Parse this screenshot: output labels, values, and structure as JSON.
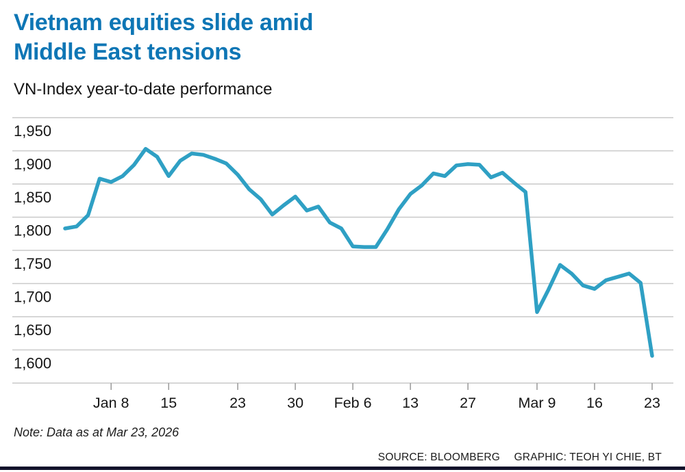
{
  "header": {
    "title_line1": "Vietnam equities slide amid",
    "title_line2": "Middle East tensions",
    "subtitle": "VN-Index year-to-date performance"
  },
  "chart_data": {
    "type": "line",
    "series_name": "VN-Index",
    "x_dates": [
      "Jan 2",
      "Jan 5",
      "Jan 6",
      "Jan 7",
      "Jan 8",
      "Jan 9",
      "Jan 12",
      "Jan 13",
      "Jan 14",
      "Jan 15",
      "Jan 16",
      "Jan 19",
      "Jan 20",
      "Jan 21",
      "Jan 22",
      "Jan 23",
      "Jan 26",
      "Jan 27",
      "Jan 28",
      "Jan 29",
      "Jan 30",
      "Feb 2",
      "Feb 3",
      "Feb 4",
      "Feb 5",
      "Feb 6",
      "Feb 9",
      "Feb 10",
      "Feb 11",
      "Feb 12",
      "Feb 13",
      "Feb 23",
      "Feb 24",
      "Feb 25",
      "Feb 26",
      "Feb 27",
      "Mar 2",
      "Mar 3",
      "Mar 4",
      "Mar 5",
      "Mar 6",
      "Mar 9",
      "Mar 10",
      "Mar 11",
      "Mar 12",
      "Mar 13",
      "Mar 16",
      "Mar 17",
      "Mar 18",
      "Mar 19",
      "Mar 20",
      "Mar 23"
    ],
    "values": [
      1783,
      1786,
      1803,
      1858,
      1853,
      1862,
      1879,
      1903,
      1891,
      1862,
      1885,
      1896,
      1894,
      1888,
      1881,
      1864,
      1842,
      1827,
      1804,
      1818,
      1831,
      1810,
      1816,
      1792,
      1783,
      1756,
      1755,
      1755,
      1782,
      1812,
      1835,
      1848,
      1866,
      1862,
      1878,
      1880,
      1879,
      1860,
      1867,
      1852,
      1838,
      1657,
      1691,
      1728,
      1715,
      1697,
      1692,
      1705,
      1710,
      1715,
      1701,
      1591
    ],
    "ylim": [
      1550,
      1950
    ],
    "ytick_values": [
      1950,
      1900,
      1850,
      1800,
      1750,
      1700,
      1650,
      1600
    ],
    "ytick_labels": [
      "1,950",
      "1,900",
      "1,850",
      "1,800",
      "1,750",
      "1,700",
      "1,650",
      "1,600"
    ],
    "xticks": [
      {
        "label": "Jan 8",
        "index": 4
      },
      {
        "label": "15",
        "index": 9
      },
      {
        "label": "23",
        "index": 15
      },
      {
        "label": "30",
        "index": 20
      },
      {
        "label": "Feb 6",
        "index": 25
      },
      {
        "label": "13",
        "index": 30
      },
      {
        "label": "27",
        "index": 35
      },
      {
        "label": "Mar 9",
        "index": 41
      },
      {
        "label": "16",
        "index": 46
      },
      {
        "label": "23",
        "index": 51
      }
    ],
    "grid": true,
    "legend": "none"
  },
  "footer": {
    "note": "Note: Data as at Mar 23, 2026",
    "source": "SOURCE: BLOOMBERG",
    "credit": "GRAPHIC: TEOH YI CHIE, BT"
  },
  "colors": {
    "title_blue": "#0E76B5",
    "line_teal": "#2FA0C4",
    "grid_gray": "#C9C9C9",
    "tick_gray": "#999999",
    "text_dark": "#161616",
    "bottom_rule": "#11112B"
  }
}
